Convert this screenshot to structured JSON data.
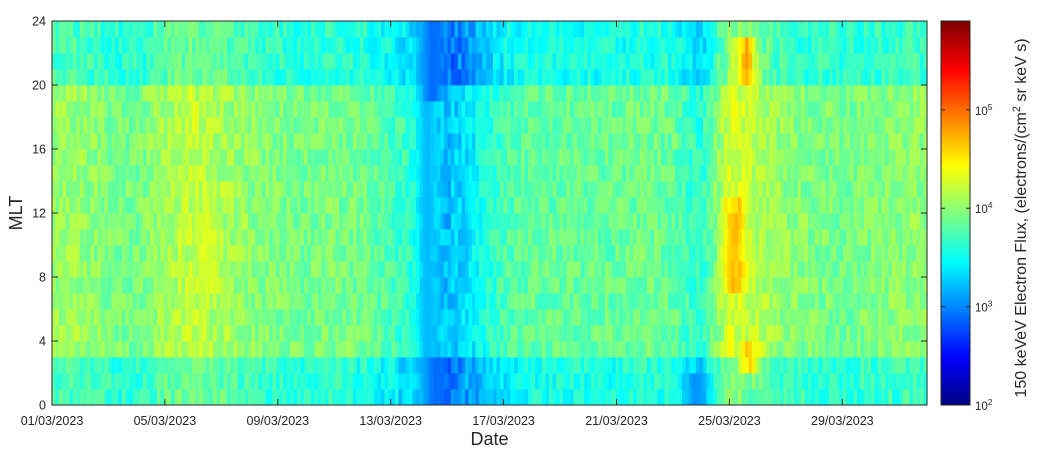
{
  "chart_data": {
    "type": "heatmap",
    "title": "",
    "xlabel": "Date",
    "ylabel": "MLT",
    "x_tick_labels": [
      "01/03/2023",
      "05/03/2023",
      "09/03/2023",
      "13/03/2023",
      "17/03/2023",
      "21/03/2023",
      "25/03/2023",
      "29/03/2023"
    ],
    "x_start": "01/03/2023",
    "x_end": "01/04/2023",
    "x_tick_day_offsets": [
      0,
      4,
      8,
      12,
      16,
      20,
      24,
      28
    ],
    "ylim": [
      0,
      24
    ],
    "y_ticks": [
      0,
      4,
      8,
      12,
      16,
      20,
      24
    ],
    "colorbar": {
      "label_main": "150 keVeV Electron Flux, (electrons/(cm",
      "label_sup": "2",
      "label_tail": " sr keV s)",
      "scale": "log",
      "range": [
        100,
        800000
      ],
      "ticks": [
        {
          "base": "10",
          "exp": "2",
          "value": 100
        },
        {
          "base": "10",
          "exp": "3",
          "value": 1000
        },
        {
          "base": "10",
          "exp": "4",
          "value": 10000
        },
        {
          "base": "10",
          "exp": "5",
          "value": 100000
        }
      ],
      "colormap": "jet"
    },
    "daily_log10_flux": [
      4.05,
      4.05,
      3.95,
      3.9,
      4.1,
      4.2,
      4.1,
      4.0,
      3.95,
      3.9,
      3.95,
      3.9,
      3.75,
      3.6,
      3.2,
      3.45,
      3.75,
      3.85,
      3.85,
      3.85,
      3.85,
      3.9,
      3.85,
      3.6,
      4.3,
      4.15,
      4.0,
      3.95,
      3.9,
      3.95,
      4.0
    ],
    "mlt_bins_lowered": [
      0.5,
      1.5,
      2.5,
      20.5,
      21.5,
      22.5,
      23.5
    ],
    "enhanced_features": [
      {
        "day": 24.2,
        "mlt_range": [
          7,
          13
        ],
        "log10_flux": 4.8
      },
      {
        "day": 24.6,
        "mlt_range": [
          20,
          23
        ],
        "log10_flux": 4.9
      },
      {
        "day": 24.7,
        "mlt_range": [
          2,
          4
        ],
        "log10_flux": 4.7
      },
      {
        "day": 5.5,
        "mlt_range": [
          7,
          12
        ],
        "log10_flux": 4.35
      }
    ],
    "depleted_features": [
      {
        "day": 13.3,
        "mlt_range": [
          0,
          24
        ],
        "log10_flux": 3.2
      },
      {
        "day": 13.6,
        "mlt_range": [
          0,
          3
        ],
        "log10_flux": 2.9
      },
      {
        "day": 13.5,
        "mlt_range": [
          19,
          24
        ],
        "log10_flux": 2.9
      },
      {
        "day": 22.8,
        "mlt_range": [
          0,
          2
        ],
        "log10_flux": 3.05
      }
    ]
  }
}
